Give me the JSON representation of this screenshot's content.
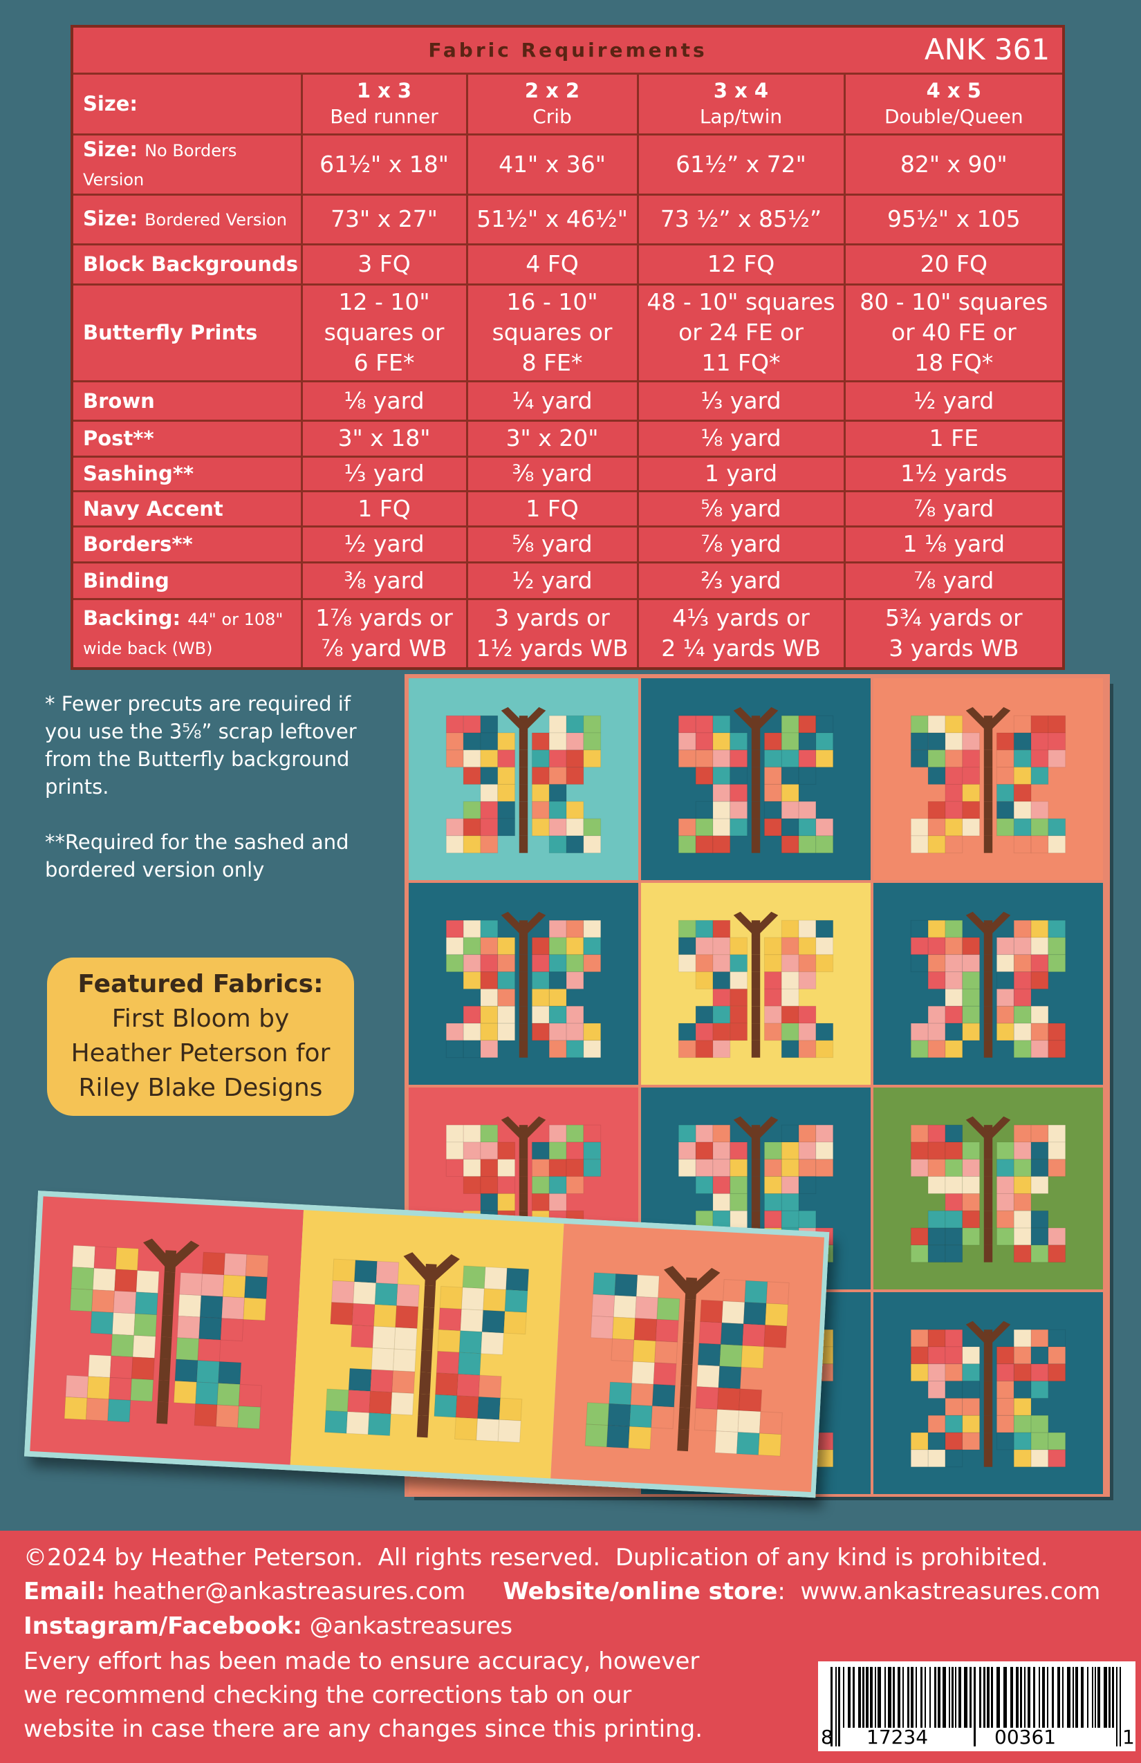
{
  "table": {
    "title": "Fabric Requirements",
    "code": "ANK 361",
    "header": {
      "label": "Size:",
      "columns": [
        {
          "size": "1 x 3",
          "desc": "Bed runner"
        },
        {
          "size": "2 x 2",
          "desc": "Crib"
        },
        {
          "size": "3 x 4",
          "desc": "Lap/twin"
        },
        {
          "size": "4 x 5",
          "desc": "Double/Queen"
        }
      ]
    },
    "rows": [
      {
        "label": "Size:",
        "sublabel": "No Borders Version",
        "cells": [
          [
            "61½\" x 18\""
          ],
          [
            "41\" x 36\""
          ],
          [
            "61½” x 72\""
          ],
          [
            "82\" x 90\""
          ]
        ]
      },
      {
        "label": "Size:",
        "sublabel": "Bordered Version",
        "cells": [
          [
            "73\" x 27\""
          ],
          [
            "51½\" x 46½\""
          ],
          [
            "73 ½” x 85½”"
          ],
          [
            "95½\" x 105"
          ]
        ]
      },
      {
        "label": "Block Backgrounds",
        "cells": [
          [
            "3 FQ"
          ],
          [
            "4 FQ"
          ],
          [
            "12 FQ"
          ],
          [
            "20 FQ"
          ]
        ]
      },
      {
        "label": "Butterfly Prints",
        "cells": [
          [
            "12 - 10\"",
            "squares or",
            "6 FE*"
          ],
          [
            "16 - 10\"",
            "squares or",
            "8 FE*"
          ],
          [
            "48 - 10\" squares",
            "or 24 FE or",
            "11 FQ*"
          ],
          [
            "80 - 10\" squares",
            "or 40 FE or",
            "18 FQ*"
          ]
        ]
      },
      {
        "label": "Brown",
        "cells": [
          [
            "⅛ yard"
          ],
          [
            "¼ yard"
          ],
          [
            "⅓ yard"
          ],
          [
            "½ yard"
          ]
        ]
      },
      {
        "label": "Post**",
        "cells": [
          [
            "3\" x 18\""
          ],
          [
            "3\" x 20\""
          ],
          [
            "⅛ yard"
          ],
          [
            "1 FE"
          ]
        ]
      },
      {
        "label": "Sashing**",
        "cells": [
          [
            "⅓ yard"
          ],
          [
            "⅜ yard"
          ],
          [
            "1 yard"
          ],
          [
            "1½ yards"
          ]
        ]
      },
      {
        "label": "Navy Accent",
        "cells": [
          [
            "1 FQ"
          ],
          [
            "1 FQ"
          ],
          [
            "⅝ yard"
          ],
          [
            "⅞ yard"
          ]
        ]
      },
      {
        "label": "Borders**",
        "cells": [
          [
            "½ yard"
          ],
          [
            "⅝ yard"
          ],
          [
            "⅞ yard"
          ],
          [
            "1 ⅛ yard"
          ]
        ]
      },
      {
        "label": "Binding",
        "cells": [
          [
            "⅜ yard"
          ],
          [
            "½ yard"
          ],
          [
            "⅔ yard"
          ],
          [
            "⅞ yard"
          ]
        ]
      },
      {
        "label": "Backing:",
        "sublabel": "44\" or 108\" wide back (WB)",
        "cells": [
          [
            "1⅞ yards or",
            "⅞ yard WB"
          ],
          [
            "3 yards or",
            "1½ yards WB"
          ],
          [
            "4⅓ yards or",
            "2 ¼ yards WB"
          ],
          [
            "5¾ yards or",
            "3 yards WB"
          ]
        ]
      }
    ]
  },
  "notes": [
    "* Fewer precuts are required if you use the 3⅝” scrap leftover from the Butterfly background prints.",
    "**Required for the sashed and bordered version only"
  ],
  "featured": {
    "title": "Featured Fabrics:",
    "lines": [
      "First Bloom by",
      "Heather Peterson for",
      "Riley Blake Designs"
    ]
  },
  "footer": {
    "copyright": "©2024 by Heather Peterson.  All rights reserved.  Duplication of any kind is prohibited.",
    "email_label": "Email:",
    "email": "heather@ankastreasures.com",
    "website_label": "Website/online store",
    "website_colon": ":",
    "website": "www.ankastreasures.com",
    "social_label": "Instagram/Facebook:",
    "social": "@ankastreasures",
    "disclaimer_lines": [
      "Every effort has been made to ensure accuracy, however",
      "we recommend checking the corrections tab on our",
      "website in case there are any changes since this printing."
    ]
  },
  "barcode": {
    "digits": [
      "8",
      "17234",
      "00361",
      "1"
    ]
  }
}
